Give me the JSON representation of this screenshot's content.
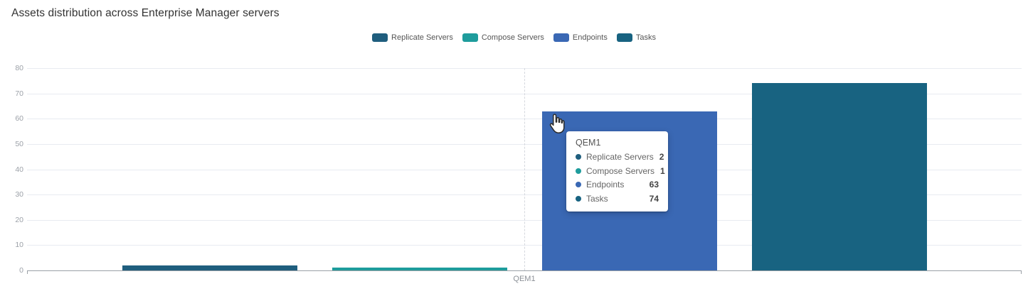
{
  "title": "Assets distribution across Enterprise Manager servers",
  "legend": {
    "items": [
      {
        "label": "Replicate Servers",
        "color": "#1f5e7e"
      },
      {
        "label": "Compose Servers",
        "color": "#1e9c9c"
      },
      {
        "label": "Endpoints",
        "color": "#3a68b4"
      },
      {
        "label": "Tasks",
        "color": "#186381"
      }
    ]
  },
  "chart_data": {
    "type": "bar",
    "title": "Assets distribution across Enterprise Manager servers",
    "categories": [
      "QEM1"
    ],
    "series": [
      {
        "name": "Replicate Servers",
        "values": [
          2
        ],
        "color": "#1f5e7e"
      },
      {
        "name": "Compose Servers",
        "values": [
          1
        ],
        "color": "#1e9c9c"
      },
      {
        "name": "Endpoints",
        "values": [
          63
        ],
        "color": "#3a68b4"
      },
      {
        "name": "Tasks",
        "values": [
          74
        ],
        "color": "#186381"
      }
    ],
    "xlabel": "",
    "ylabel": "",
    "ylim": [
      0,
      80
    ],
    "ytick_interval": 10,
    "grid": true,
    "legend_position": "top-center",
    "hovered_category": "QEM1"
  },
  "axes": {
    "y_ticks": [
      "0",
      "10",
      "20",
      "30",
      "40",
      "50",
      "60",
      "70",
      "80"
    ],
    "x_ticks": [
      "QEM1"
    ]
  },
  "tooltip": {
    "title": "QEM1",
    "rows": [
      {
        "label": "Replicate Servers",
        "value": "2",
        "color": "#1f5e7e"
      },
      {
        "label": "Compose Servers",
        "value": "1",
        "color": "#1e9c9c"
      },
      {
        "label": "Endpoints",
        "value": "63",
        "color": "#3a68b4"
      },
      {
        "label": "Tasks",
        "value": "74",
        "color": "#186381"
      }
    ]
  },
  "icons": {
    "cursor": "hand-pointer"
  },
  "colors": {
    "axis_line": "#9aa0a6",
    "gridline": "#e8ebf1",
    "crosshair": "#d5d8de",
    "tick_label": "#9ca1a8",
    "title_text": "#333333"
  }
}
